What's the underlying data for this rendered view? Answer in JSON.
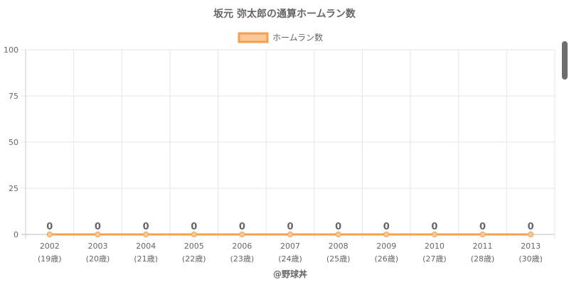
{
  "chart_data": {
    "type": "line",
    "title": "坂元 弥太郎の通算ホームラン数",
    "categories": [
      "2002",
      "2003",
      "2004",
      "2005",
      "2006",
      "2007",
      "2008",
      "2009",
      "2010",
      "2011",
      "2013"
    ],
    "sublabels": [
      "(19歳)",
      "(20歳)",
      "(21歳)",
      "(22歳)",
      "(23歳)",
      "(24歳)",
      "(25歳)",
      "(26歳)",
      "(27歳)",
      "(28歳)",
      "(30歳)"
    ],
    "series": [
      {
        "name": "ホームラン数",
        "values": [
          0,
          0,
          0,
          0,
          0,
          0,
          0,
          0,
          0,
          0,
          0
        ]
      }
    ],
    "ylim": [
      0,
      100
    ],
    "yticks": [
      0,
      25,
      50,
      75,
      100
    ],
    "grid": true,
    "legend": "top-center",
    "data_labels": true,
    "colors": {
      "line": "#f7a04a",
      "legend_fill": "#fbc899",
      "grid": "#e6e6e6",
      "text": "#666666"
    }
  },
  "footer": {
    "credit": "@野球丼"
  }
}
